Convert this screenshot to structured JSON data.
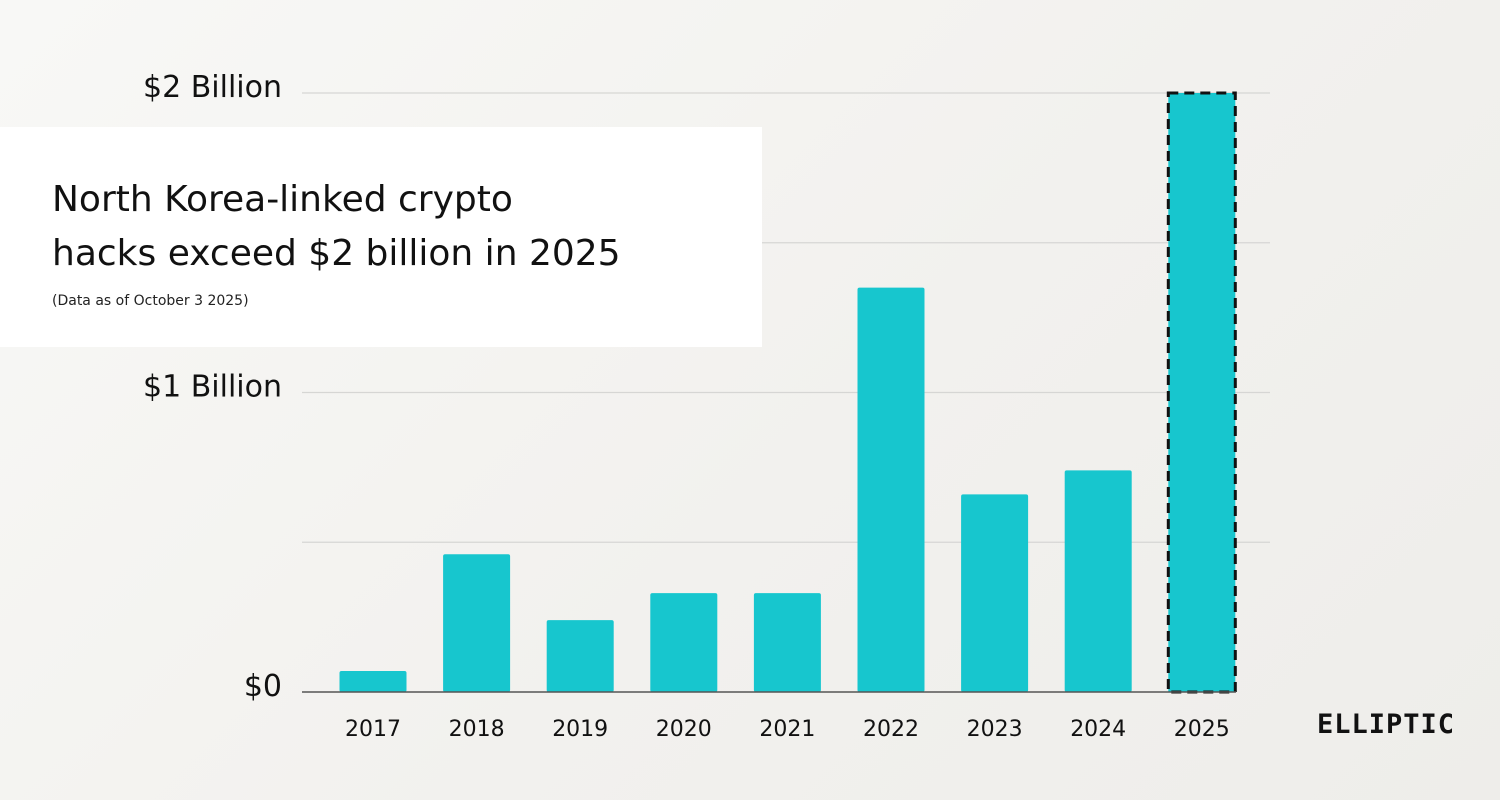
{
  "chart_data": {
    "type": "bar",
    "title": "North Korea-linked crypto\nhacks exceed $2 billion in 2025",
    "subtitle": "(Data as of October 3 2025)",
    "categories": [
      "2017",
      "2018",
      "2019",
      "2020",
      "2021",
      "2022",
      "2023",
      "2024",
      "2025"
    ],
    "values": [
      0.07,
      0.46,
      0.24,
      0.33,
      0.33,
      1.35,
      0.66,
      0.74,
      2.0
    ],
    "unit": "USD billions",
    "ylim": [
      0,
      2
    ],
    "y_tick_values": [
      0,
      1,
      2
    ],
    "y_tick_labels": [
      "$0",
      "$1 Billion",
      "$2 Billion"
    ],
    "minor_gridlines": [
      0.5,
      1.5
    ],
    "grid": true,
    "legend": "none",
    "highlighted_category": "2025",
    "highlight_style": "dashed-outline",
    "colors": {
      "bar": "#17c6ce",
      "highlight_outline": "#111111",
      "grid": "#d6d6d4",
      "axis": "#555555",
      "background": "#f3f2ef"
    }
  },
  "brand": {
    "logo_text": "ELLIPTIC"
  }
}
